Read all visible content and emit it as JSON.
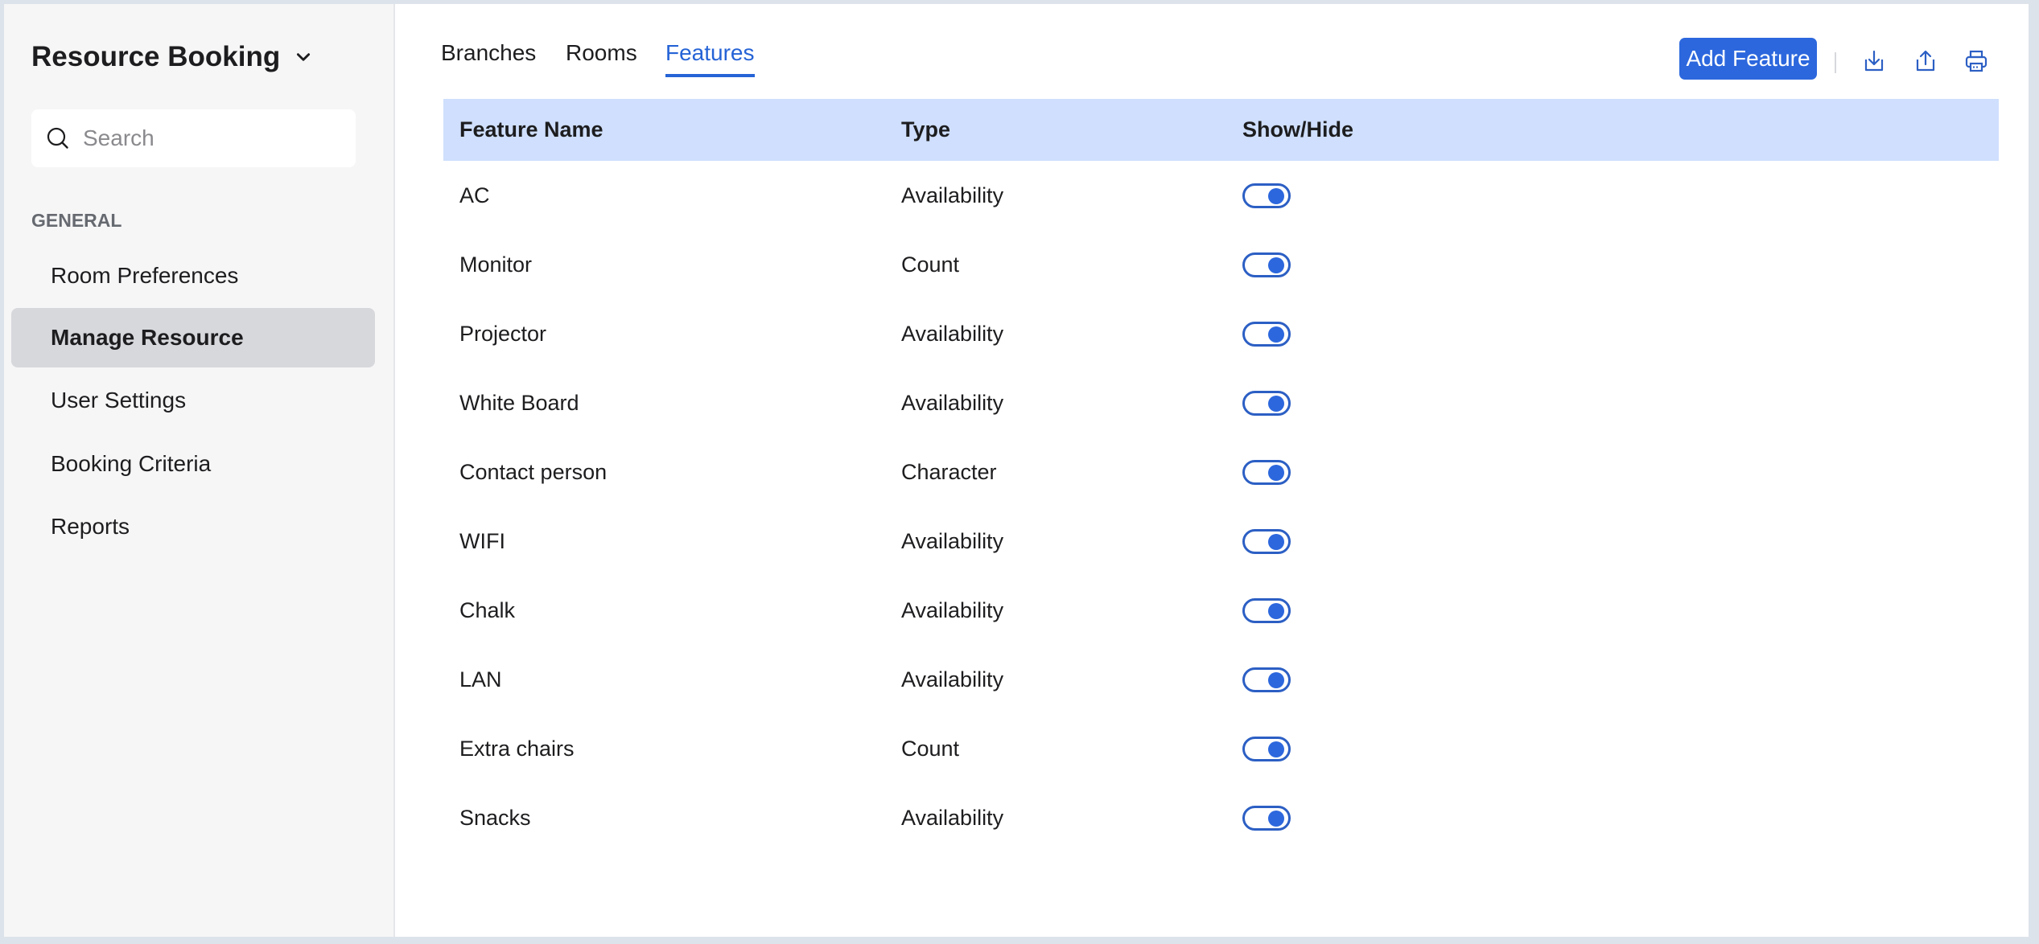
{
  "sidebar": {
    "app_title": "Resource Booking",
    "search_placeholder": "Search",
    "section_label": "GENERAL",
    "items": [
      {
        "label": "Room Preferences",
        "active": false
      },
      {
        "label": "Manage Resource",
        "active": true
      },
      {
        "label": "User Settings",
        "active": false
      },
      {
        "label": "Booking Criteria",
        "active": false
      },
      {
        "label": "Reports",
        "active": false
      }
    ]
  },
  "tabs": [
    {
      "label": "Branches",
      "active": false
    },
    {
      "label": "Rooms",
      "active": false
    },
    {
      "label": "Features",
      "active": true
    }
  ],
  "toolbar": {
    "add_label": "Add Feature",
    "icons": [
      "download-icon",
      "export-icon",
      "print-icon"
    ]
  },
  "table": {
    "headers": [
      "Feature Name",
      "Type",
      "Show/Hide"
    ],
    "rows": [
      {
        "name": "AC",
        "type": "Availability",
        "shown": true
      },
      {
        "name": "Monitor",
        "type": "Count",
        "shown": true
      },
      {
        "name": "Projector",
        "type": "Availability",
        "shown": true
      },
      {
        "name": "White Board",
        "type": "Availability",
        "shown": true
      },
      {
        "name": "Contact person",
        "type": "Character",
        "shown": true
      },
      {
        "name": "WIFI",
        "type": "Availability",
        "shown": true
      },
      {
        "name": "Chalk",
        "type": "Availability",
        "shown": true
      },
      {
        "name": "LAN",
        "type": "Availability",
        "shown": true
      },
      {
        "name": "Extra chairs",
        "type": "Count",
        "shown": true
      },
      {
        "name": "Snacks",
        "type": "Availability",
        "shown": true
      }
    ]
  },
  "colors": {
    "accent": "#2c67dd",
    "header_bg": "#cfdffd",
    "active_nav_bg": "#d7d8dc"
  }
}
